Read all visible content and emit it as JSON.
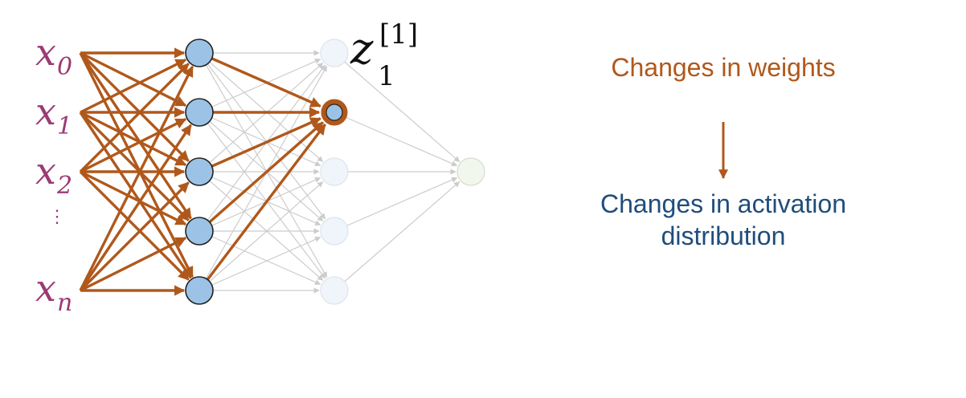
{
  "inputs": [
    {
      "base": "x",
      "sub": "0"
    },
    {
      "base": "x",
      "sub": "1"
    },
    {
      "base": "x",
      "sub": "2"
    },
    {
      "base": "x",
      "sub": "n"
    }
  ],
  "ellipsis": "⋮",
  "highlight_label": {
    "base": "z",
    "sup": "[1]",
    "sub": "1"
  },
  "caption_top": "Changes in weights",
  "caption_bottom": "Changes in activation distribution",
  "colors": {
    "orange": "#b0581b",
    "blue_text": "#1f4d7c",
    "neuron_fill": "#9cc3e6",
    "faded_neuron_fill": "#f0f5fb",
    "faded_stroke": "#cccccc",
    "output_fill": "#f2f7ee"
  }
}
